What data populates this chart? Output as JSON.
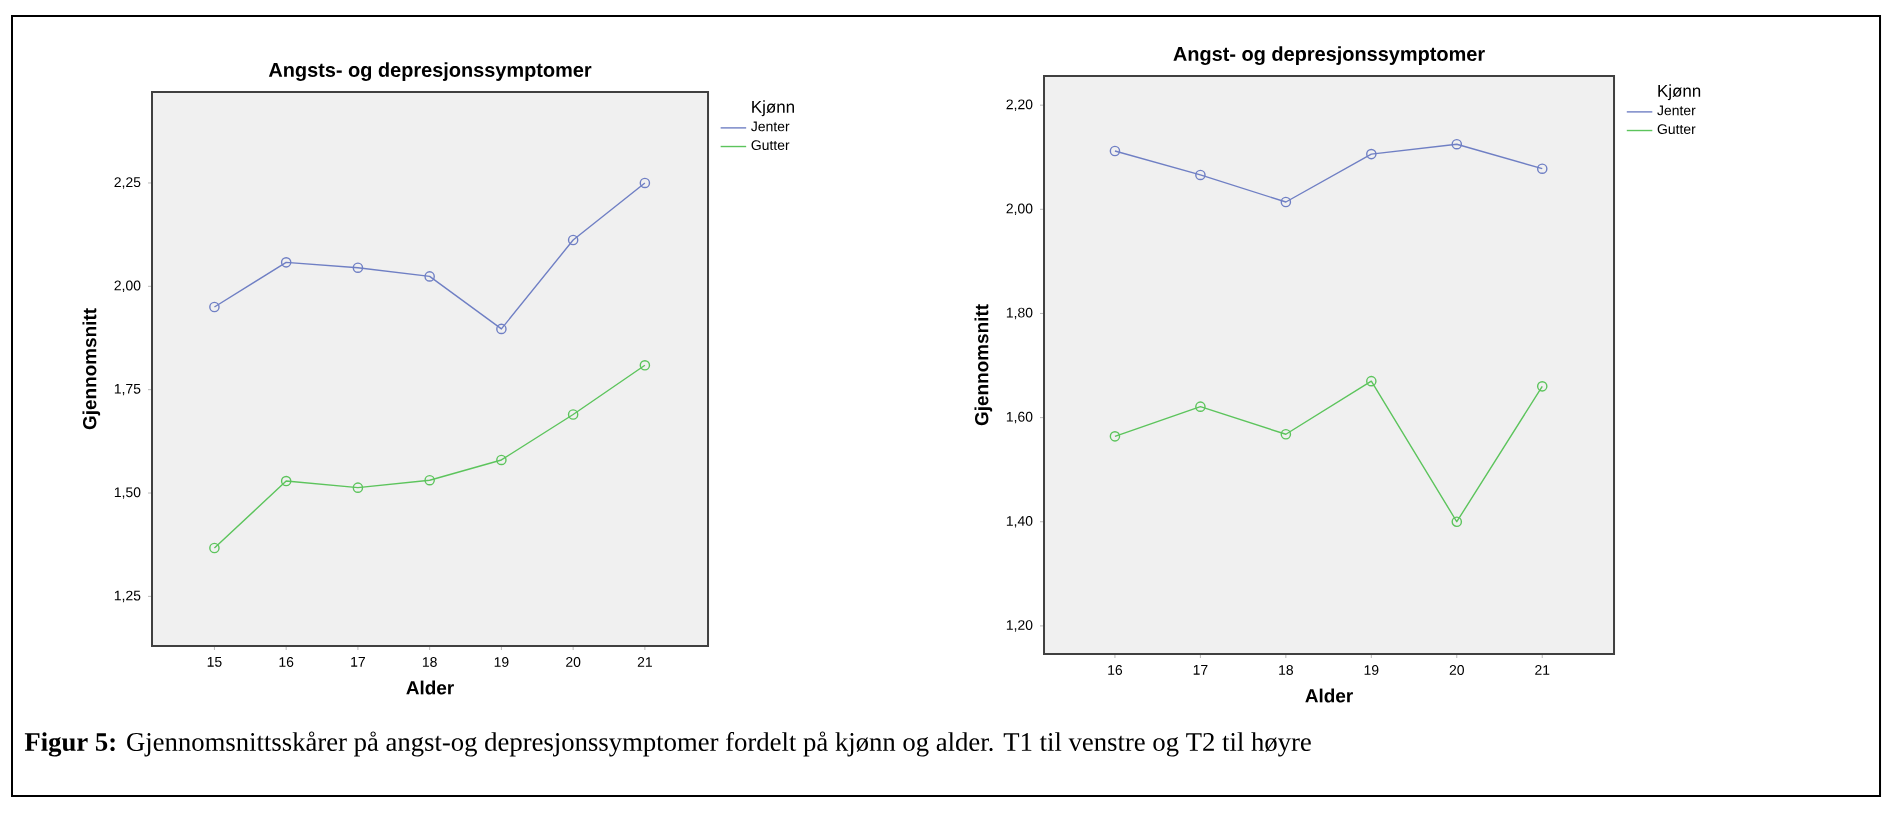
{
  "chart_data": [
    {
      "type": "line",
      "title": "Angsts- og depresjonssymptomer",
      "xlabel": "Alder",
      "ylabel": "Gjennomsnitt",
      "legend_title": "Kjønn",
      "legend": "right",
      "marker": "circle",
      "line_style": "solid",
      "x": [
        15,
        16,
        17,
        18,
        19,
        20,
        21
      ],
      "xlim": [
        14.13,
        21.88
      ],
      "xticks": [
        15,
        16,
        17,
        18,
        19,
        20,
        21
      ],
      "ylim": [
        1.13,
        2.47
      ],
      "yticks": [
        {
          "value": 1.25,
          "label": "1,25"
        },
        {
          "value": 1.5,
          "label": "1,50"
        },
        {
          "value": 1.75,
          "label": "1,75"
        },
        {
          "value": 2.0,
          "label": "2,00"
        },
        {
          "value": 2.25,
          "label": "2,25"
        }
      ],
      "series": [
        {
          "name": "Jenter",
          "color": "#6f7fc4",
          "values": [
            1.95,
            2.058,
            2.045,
            2.024,
            1.897,
            2.112,
            2.25
          ]
        },
        {
          "name": "Gutter",
          "color": "#5cc45c",
          "values": [
            1.367,
            1.529,
            1.513,
            1.531,
            1.58,
            1.69,
            1.809
          ]
        }
      ],
      "annotations": [
        "**Figur 5:** Gjennomsnittsskårer på angst-og depresjonssymptomer fordelt på kjønn og alder. T1 til venstre og T2 til høyre"
      ]
    },
    {
      "type": "line",
      "title": "Angst- og depresjonssymptomer",
      "xlabel": "Alder",
      "ylabel": "Gjennomsnitt",
      "legend_title": "Kjønn",
      "legend": "right",
      "marker": "circle",
      "line_style": "solid",
      "x": [
        16,
        17,
        18,
        19,
        20,
        21
      ],
      "xlim": [
        15.17,
        21.84
      ],
      "xticks": [
        16,
        17,
        18,
        19,
        20,
        21
      ],
      "ylim": [
        1.146,
        2.256
      ],
      "yticks": [
        {
          "value": 1.2,
          "label": "1,20"
        },
        {
          "value": 1.4,
          "label": "1,40"
        },
        {
          "value": 1.6,
          "label": "1,60"
        },
        {
          "value": 1.8,
          "label": "1,80"
        },
        {
          "value": 2.0,
          "label": "2,00"
        },
        {
          "value": 2.2,
          "label": "2,20"
        }
      ],
      "series": [
        {
          "name": "Jenter",
          "color": "#6f7fc4",
          "values": [
            2.112,
            2.066,
            2.014,
            2.106,
            2.125,
            2.078
          ]
        },
        {
          "name": "Gutter",
          "color": "#5cc45c",
          "values": [
            1.564,
            1.621,
            1.568,
            1.67,
            1.4,
            1.66
          ]
        }
      ]
    }
  ]
}
